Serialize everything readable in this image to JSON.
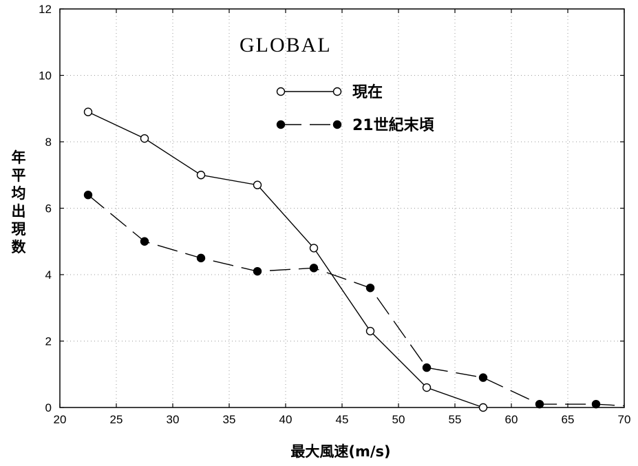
{
  "chart_data": {
    "type": "line",
    "title": "GLOBAL",
    "xlabel": "最大風速(m/s)",
    "ylabel": "年平均出現数",
    "xlim": [
      20,
      70
    ],
    "ylim": [
      0,
      12
    ],
    "xticks": [
      20,
      25,
      30,
      35,
      40,
      45,
      50,
      55,
      60,
      65,
      70
    ],
    "yticks": [
      0,
      2,
      4,
      6,
      8,
      10,
      12
    ],
    "grid": true,
    "legend_position": "top-center",
    "series": [
      {
        "name": "現在",
        "marker": "open-circle",
        "line_style": "solid",
        "x": [
          22.5,
          27.5,
          32.5,
          37.5,
          42.5,
          47.5,
          52.5,
          57.5
        ],
        "y": [
          8.9,
          8.1,
          7.0,
          6.7,
          4.8,
          2.3,
          0.6,
          0.0
        ]
      },
      {
        "name": "21世紀末頃",
        "marker": "filled-circle",
        "line_style": "dashed",
        "x": [
          22.5,
          27.5,
          32.5,
          37.5,
          42.5,
          47.5,
          52.5,
          57.5,
          62.5,
          67.5,
          70
        ],
        "y": [
          6.4,
          5.0,
          4.5,
          4.1,
          4.2,
          3.6,
          1.2,
          0.9,
          0.1,
          0.1,
          0.05
        ],
        "marker_count": 10
      }
    ]
  }
}
